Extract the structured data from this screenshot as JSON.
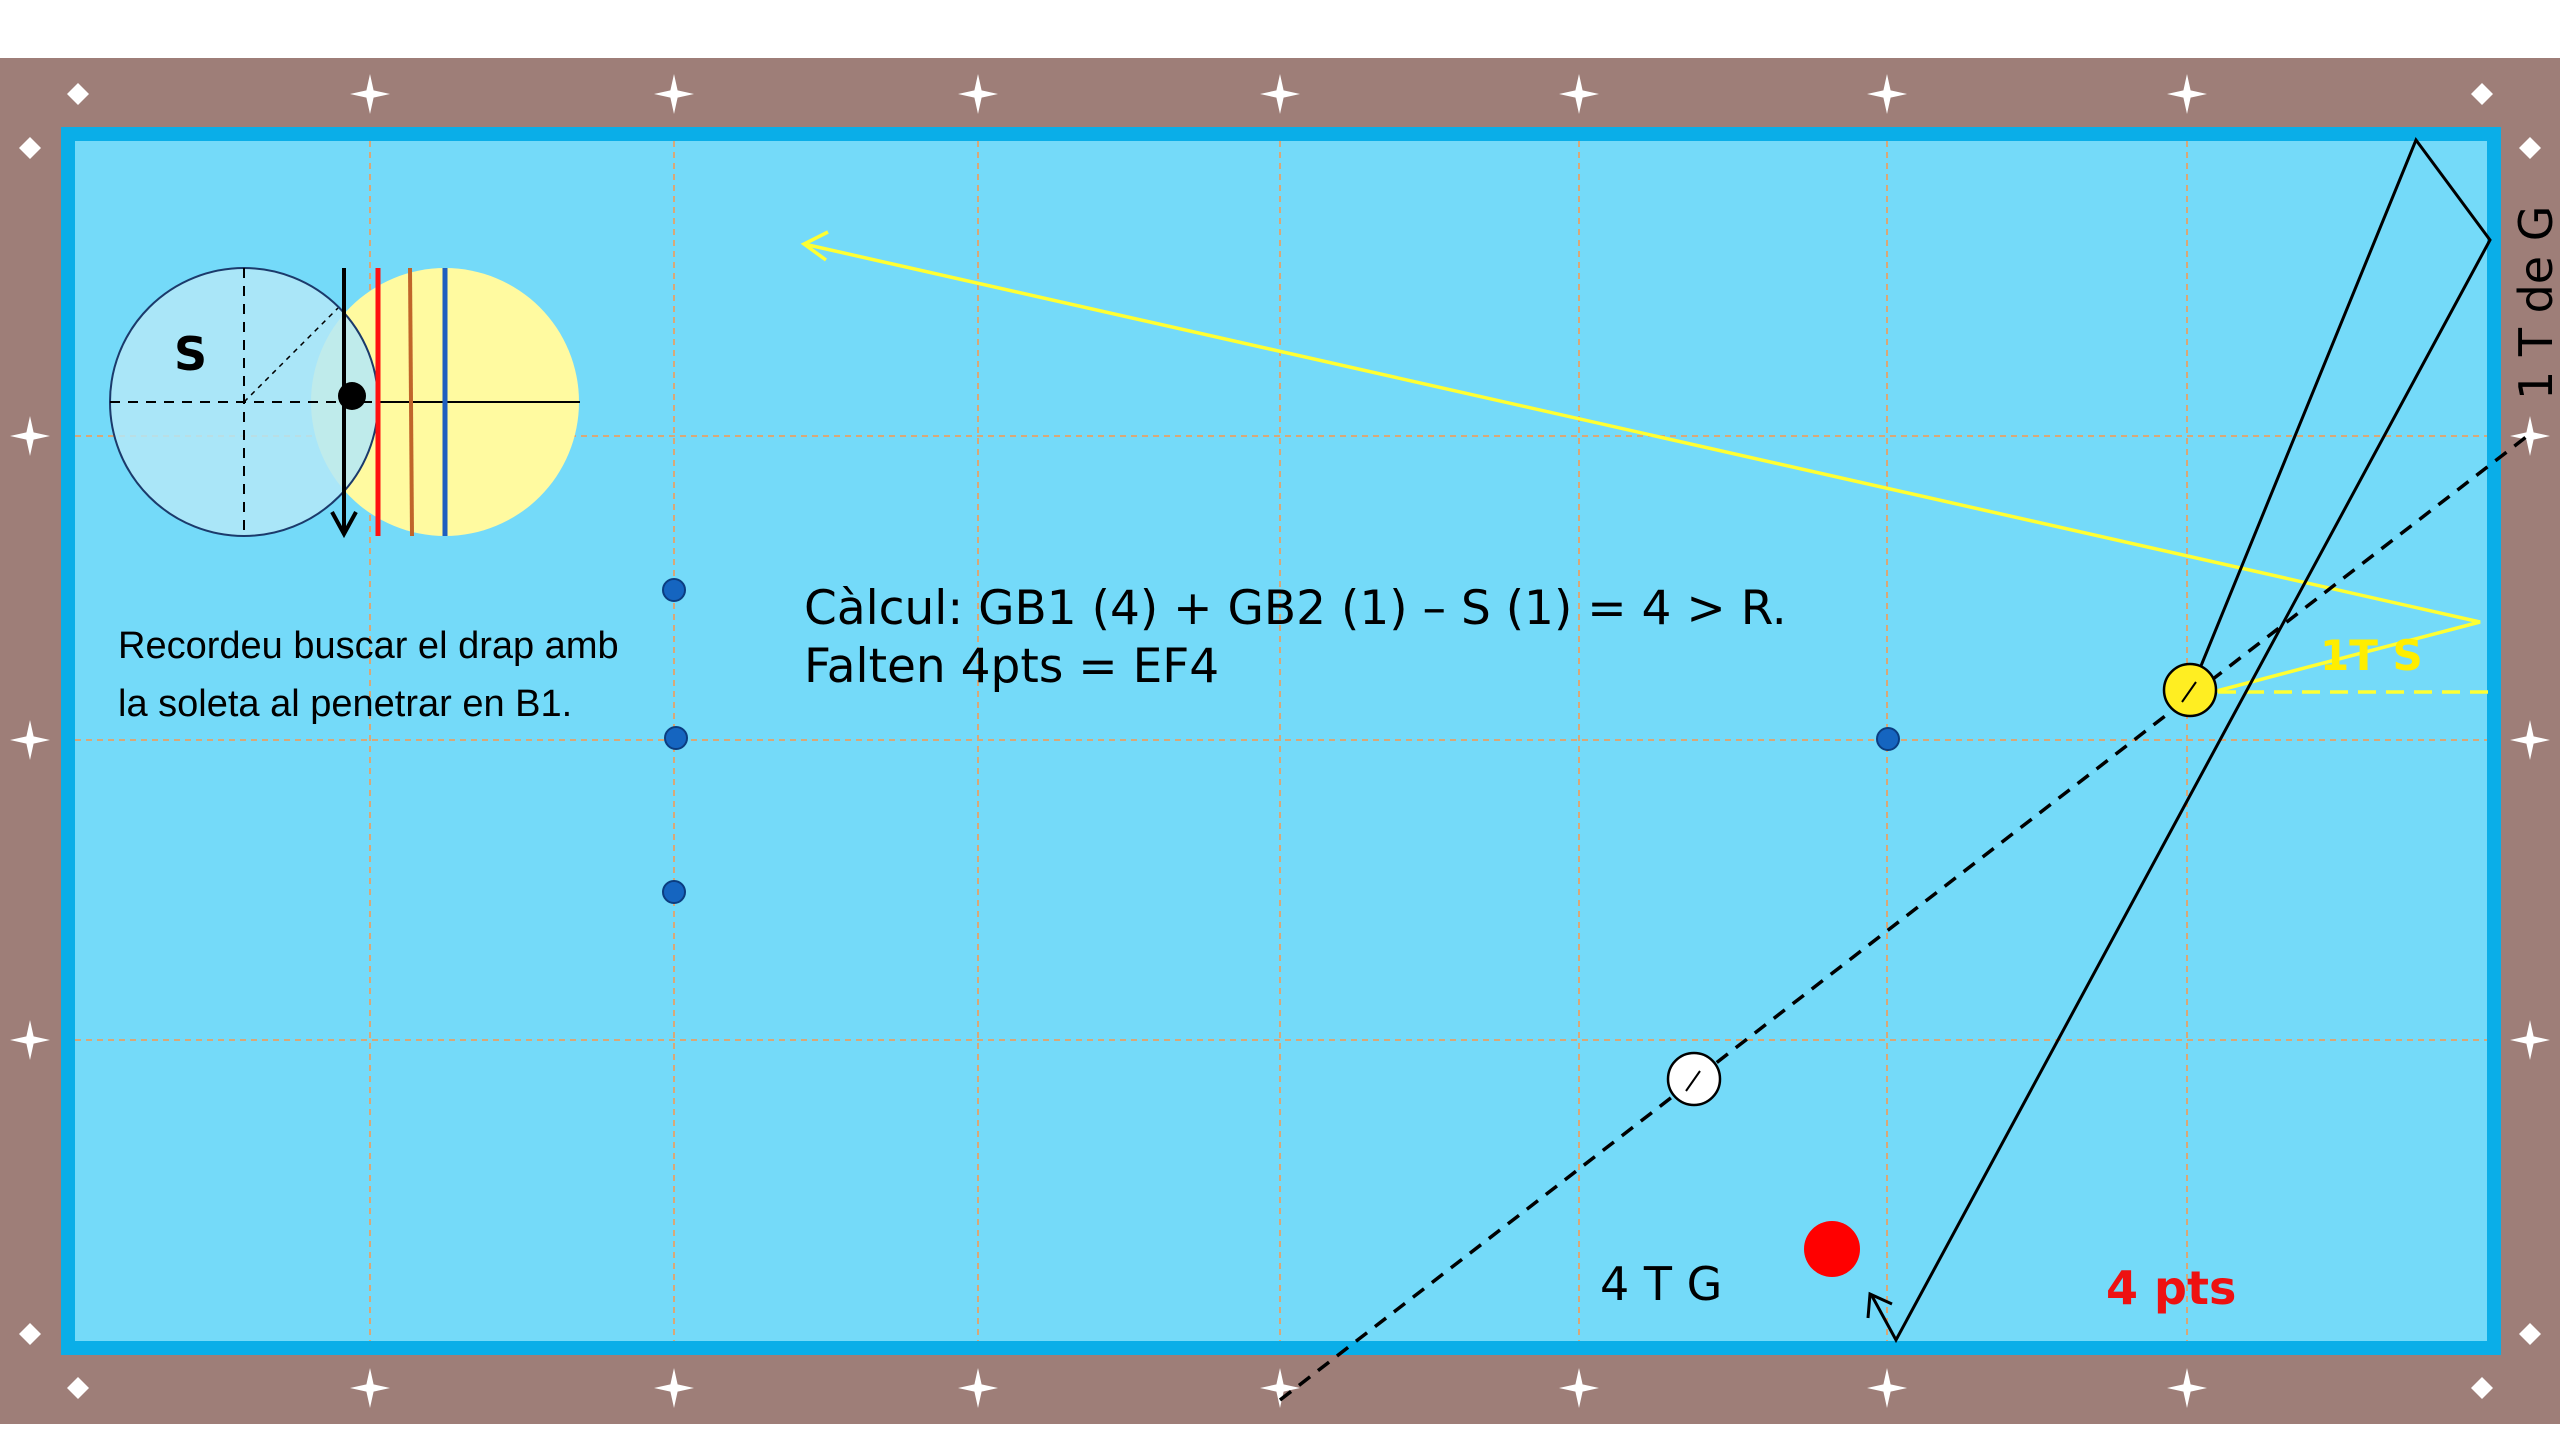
{
  "colors": {
    "frame": "#9e7e78",
    "cloth": "#74daf9",
    "cushion": "#0aaee8",
    "grid": "#d8a878",
    "yellow_path": "#ffff33",
    "black_path": "#000000",
    "red_ball": "#ff0000",
    "yellow_ball": "#ffee22",
    "white_ball": "#ffffff",
    "marker_dot": "#1565c0",
    "diamond": "#ffffff"
  },
  "diamond_icons": [
    "diamond-marker-icon",
    "sparkle-marker-icon"
  ],
  "calculation": {
    "line1": "Càlcul: GB1 (4) + GB2 (1) – S (1) = 4 > R.",
    "line2": "Falten 4pts = EF4"
  },
  "reminder": {
    "line1": "Recordeu buscar el drap amb",
    "line2": "la soleta al penetrar en B1."
  },
  "labels": {
    "spin_letter": "S",
    "short_rail_label": "1 T de G",
    "yellow_path_label": "1T S",
    "bottom_label": "4 T G",
    "points_label": "4 pts"
  }
}
